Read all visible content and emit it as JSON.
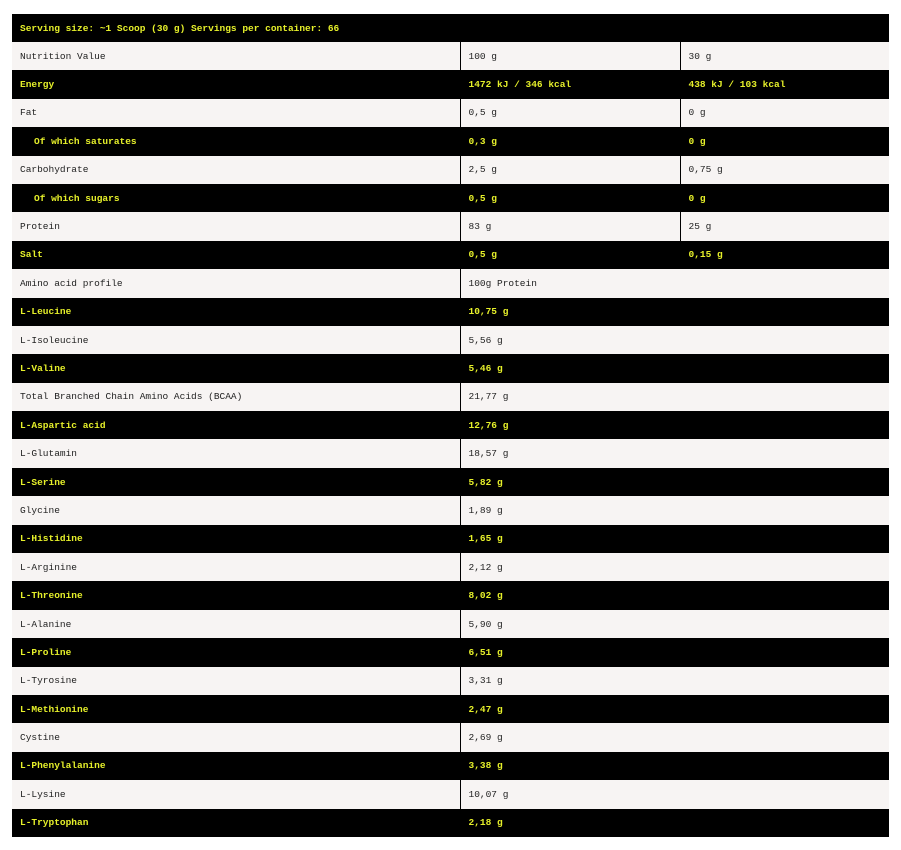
{
  "header": "Serving size: ~1 Scoop (30 g) Servings per container: 66",
  "colors": {
    "dark_row": "#000000",
    "light_row": "#f7f4f3",
    "accent_text": "#e6f02a"
  },
  "rows": [
    {
      "label": "Nutrition Value",
      "values": [
        "100 g",
        "30 g"
      ]
    },
    {
      "label": "Energy",
      "values": [
        "1472 kJ / 346 kcal",
        "438 kJ / 103 kcal"
      ]
    },
    {
      "label": "Fat",
      "values": [
        "0,5 g",
        "0 g"
      ]
    },
    {
      "label": "Of which saturates",
      "indent": true,
      "values": [
        "0,3 g",
        "0 g"
      ]
    },
    {
      "label": "Carbohydrate",
      "values": [
        "2,5 g",
        "0,75 g"
      ]
    },
    {
      "label": "Of which sugars",
      "indent": true,
      "values": [
        "0,5 g",
        "0 g"
      ]
    },
    {
      "label": "Protein",
      "values": [
        "83 g",
        "25 g"
      ]
    },
    {
      "label": "Salt",
      "values": [
        "0,5 g",
        "0,15 g"
      ]
    },
    {
      "label": "Amino acid profile",
      "values": [
        "100g Protein"
      ]
    },
    {
      "label": "L-Leucine",
      "values": [
        "10,75 g"
      ]
    },
    {
      "label": "L-Isoleucine",
      "values": [
        "5,56 g"
      ]
    },
    {
      "label": "L-Valine",
      "values": [
        "5,46 g"
      ]
    },
    {
      "label": "Total Branched Chain Amino Acids (BCAA)",
      "values": [
        "21,77 g"
      ]
    },
    {
      "label": "L-Aspartic acid",
      "values": [
        "12,76 g"
      ]
    },
    {
      "label": "L-Glutamin",
      "values": [
        "18,57 g"
      ]
    },
    {
      "label": "L-Serine",
      "values": [
        "5,82 g"
      ]
    },
    {
      "label": "Glycine",
      "values": [
        "1,89 g"
      ]
    },
    {
      "label": "L-Histidine",
      "values": [
        "1,65 g"
      ]
    },
    {
      "label": "L-Arginine",
      "values": [
        "2,12 g"
      ]
    },
    {
      "label": "L-Threonine",
      "values": [
        "8,02 g"
      ]
    },
    {
      "label": "L-Alanine",
      "values": [
        "5,90 g"
      ]
    },
    {
      "label": "L-Proline",
      "values": [
        "6,51 g"
      ]
    },
    {
      "label": "L-Tyrosine",
      "values": [
        "3,31 g"
      ]
    },
    {
      "label": "L-Methionine",
      "values": [
        "2,47 g"
      ]
    },
    {
      "label": "Cystine",
      "values": [
        "2,69 g"
      ]
    },
    {
      "label": "L-Phenylalanine",
      "values": [
        "3,38 g"
      ]
    },
    {
      "label": "L-Lysine",
      "values": [
        "10,07 g"
      ]
    },
    {
      "label": "L-Tryptophan",
      "values": [
        "2,18 g"
      ]
    }
  ]
}
